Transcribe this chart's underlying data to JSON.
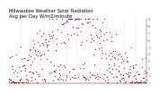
{
  "title": "Milwaukee Weather Solar Radiation\nAvg per Day W/m2/minute",
  "title_fontsize": 3.8,
  "dot_color": "#cc0000",
  "dot_size": 0.8,
  "background_color": "#ffffff",
  "grid_color": "#bbbbbb",
  "ylim": [
    0,
    9
  ],
  "yticks": [
    1,
    2,
    3,
    4,
    5,
    6,
    7,
    8,
    9
  ],
  "num_points": 365,
  "seed": 42
}
